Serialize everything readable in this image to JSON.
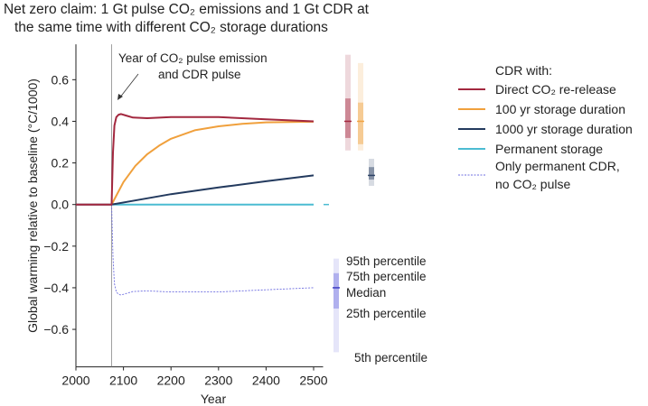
{
  "chart_data": {
    "type": "line",
    "title_lines": [
      "Net zero claim: 1 Gt pulse CO₂ emissions and 1 Gt CDR at",
      "the same time with different CO₂ storage durations"
    ],
    "xlabel": "Year",
    "ylabel": "Global warming relative to baseline (°C/1000)",
    "xlim": [
      2000,
      2520
    ],
    "ylim": [
      -0.78,
      0.77
    ],
    "xticks": [
      2000,
      2100,
      2200,
      2300,
      2400,
      2500
    ],
    "yticks": [
      -0.6,
      -0.4,
      -0.2,
      0.0,
      0.2,
      0.4,
      0.6
    ],
    "grid": false,
    "pulse_year": 2075,
    "annotation": [
      "Year of CO₂ pulse emission",
      "and CDR pulse"
    ],
    "legend_title": "CDR with:",
    "legend_placement": "right",
    "series": [
      {
        "name": "Direct CO₂ re-release",
        "color": "#a3283f",
        "style": "solid",
        "x": [
          2000,
          2075,
          2078,
          2081,
          2085,
          2090,
          2095,
          2105,
          2120,
          2150,
          2200,
          2300,
          2400,
          2500
        ],
        "y": [
          0,
          0,
          0.25,
          0.38,
          0.42,
          0.432,
          0.435,
          0.428,
          0.418,
          0.415,
          0.42,
          0.42,
          0.41,
          0.4
        ],
        "box": {
          "p5": 0.26,
          "p25": 0.32,
          "median": 0.4,
          "p75": 0.51,
          "p95": 0.72
        }
      },
      {
        "name": "100 yr storage duration",
        "color": "#f0a03c",
        "style": "solid",
        "x": [
          2075,
          2100,
          2125,
          2150,
          2175,
          2200,
          2250,
          2300,
          2350,
          2400,
          2450,
          2500
        ],
        "y": [
          0,
          0.108,
          0.186,
          0.242,
          0.283,
          0.316,
          0.357,
          0.376,
          0.388,
          0.395,
          0.397,
          0.398
        ],
        "box": {
          "p5": 0.26,
          "p25": 0.29,
          "median": 0.4,
          "p75": 0.49,
          "p95": 0.68
        }
      },
      {
        "name": "1000 yr storage duration",
        "color": "#233a5e",
        "style": "solid",
        "x": [
          2000,
          2075,
          2150,
          2200,
          2300,
          2400,
          2500
        ],
        "y": [
          0,
          0,
          0.03,
          0.05,
          0.082,
          0.112,
          0.14
        ],
        "box": {
          "p5": 0.09,
          "p25": 0.12,
          "median": 0.14,
          "p75": 0.18,
          "p95": 0.22
        }
      },
      {
        "name": "Permanent storage",
        "color": "#4bbcd2",
        "style": "solid",
        "x": [
          2075,
          2500
        ],
        "y": [
          0,
          0
        ],
        "box": {
          "p5": 0,
          "p25": 0,
          "median": 0,
          "p75": 0,
          "p95": 0
        }
      },
      {
        "name": "Only permanent CDR, no CO₂ pulse",
        "name_lines": [
          "Only permanent CDR,",
          "no CO₂ pulse"
        ],
        "color": "#6f6fe0",
        "style": "dashed",
        "x": [
          2075,
          2078,
          2081,
          2085,
          2090,
          2095,
          2105,
          2120,
          2150,
          2200,
          2300,
          2400,
          2500
        ],
        "y": [
          0,
          -0.25,
          -0.38,
          -0.42,
          -0.432,
          -0.435,
          -0.428,
          -0.418,
          -0.415,
          -0.42,
          -0.42,
          -0.41,
          -0.4
        ],
        "box": {
          "p5": -0.71,
          "p25": -0.5,
          "median": -0.4,
          "p75": -0.33,
          "p95": -0.26
        }
      }
    ],
    "percentile_labels": {
      "p95": "95th percentile",
      "p75": "75th percentile",
      "median": "Median",
      "p25": "25th percentile",
      "p5": "5th percentile"
    }
  }
}
